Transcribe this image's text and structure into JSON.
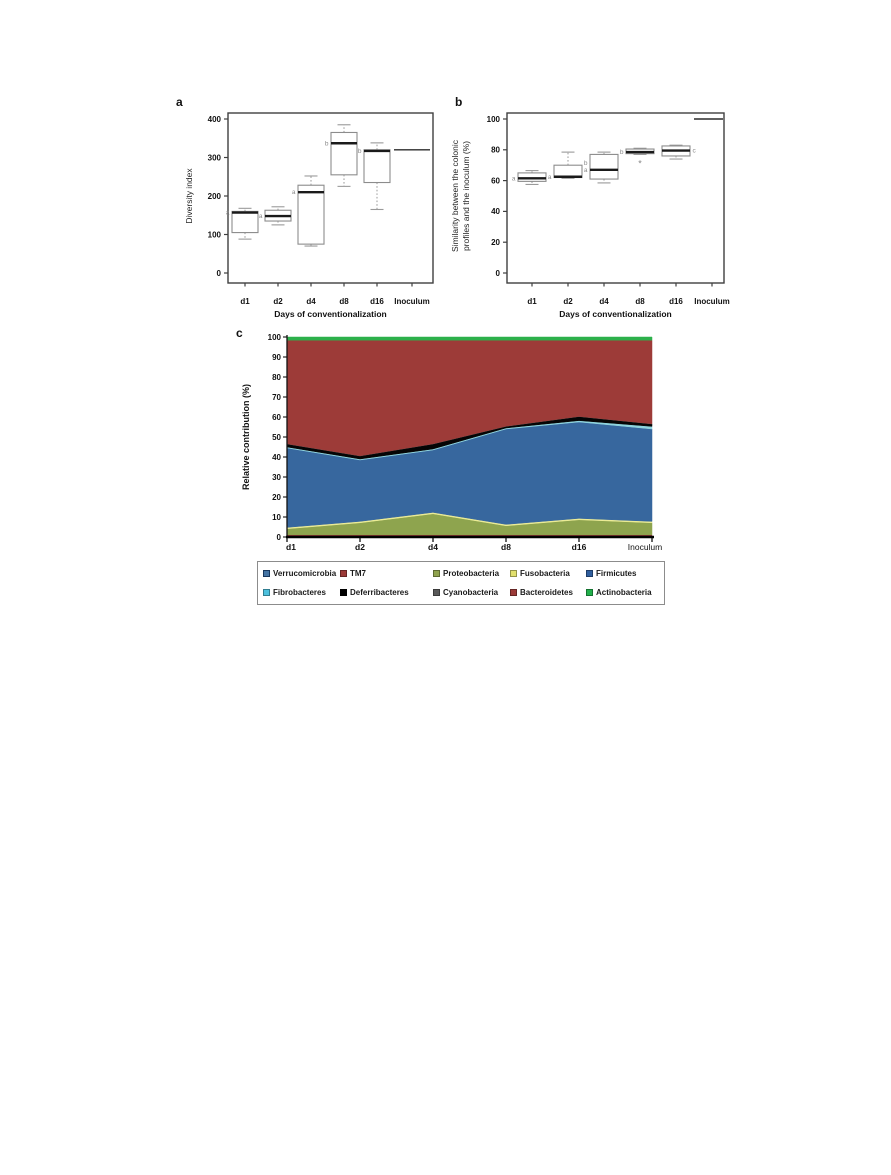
{
  "panels": {
    "a": {
      "label": "a"
    },
    "b": {
      "label": "b"
    },
    "c": {
      "label": "c"
    }
  },
  "chart_data": [
    {
      "panel": "a",
      "type": "box",
      "xlabel": "Days of conventionalization",
      "ylabel": "Diversity index",
      "ylim": [
        0,
        400
      ],
      "yticks": [
        0,
        100,
        200,
        300,
        400
      ],
      "categories": [
        "d1",
        "d2",
        "d4",
        "d8",
        "d16",
        "Inoculum"
      ],
      "boxes": [
        {
          "category": "d1",
          "whisker_low": 88,
          "q1": 105,
          "median": 157,
          "q3": 160,
          "whisker_high": 168,
          "sig_labels": [
            "a"
          ]
        },
        {
          "category": "d2",
          "whisker_low": 125,
          "q1": 135,
          "median": 148,
          "q3": 163,
          "whisker_high": 172,
          "sig_labels": [
            "a"
          ]
        },
        {
          "category": "d4",
          "whisker_low": 70,
          "q1": 75,
          "median": 210,
          "q3": 228,
          "whisker_high": 252,
          "sig_labels": [
            "a"
          ]
        },
        {
          "category": "d8",
          "whisker_low": 225,
          "q1": 255,
          "median": 337,
          "q3": 365,
          "whisker_high": 385,
          "sig_labels": [
            "b"
          ]
        },
        {
          "category": "d16",
          "whisker_low": 165,
          "q1": 235,
          "median": 317,
          "q3": 320,
          "whisker_high": 338,
          "sig_labels": [
            "b"
          ]
        },
        {
          "category": "Inoculum",
          "value_line": 320
        }
      ]
    },
    {
      "panel": "b",
      "type": "box",
      "xlabel": "Days of conventionalization",
      "ylabel_lines": [
        "Similarity between the colonic",
        "profiles and the inoculum (%)"
      ],
      "ylim": [
        0,
        100
      ],
      "yticks": [
        0,
        20,
        40,
        60,
        80,
        100
      ],
      "categories": [
        "d1",
        "d2",
        "d4",
        "d8",
        "d16",
        "Inoculum"
      ],
      "boxes": [
        {
          "category": "d1",
          "whisker_low": 57.5,
          "q1": 59.5,
          "median": 61.5,
          "q3": 65,
          "whisker_high": 66.5,
          "sig_labels": [
            "a"
          ]
        },
        {
          "category": "d2",
          "whisker_low": 61.5,
          "q1": 62,
          "median": 62.5,
          "q3": 70,
          "whisker_high": 78.5,
          "sig_labels": [
            "a"
          ]
        },
        {
          "category": "d4",
          "whisker_low": 58.5,
          "q1": 61,
          "median": 67,
          "q3": 77,
          "whisker_high": 78.5,
          "sig_labels": [
            "b",
            "a"
          ]
        },
        {
          "category": "d8",
          "whisker_low": 77,
          "q1": 77.5,
          "median": 78.5,
          "q3": 80.5,
          "whisker_high": 81,
          "sig_labels": [
            "b"
          ],
          "outliers": [
            71
          ]
        },
        {
          "category": "d16",
          "whisker_low": 74,
          "q1": 76,
          "median": 79.5,
          "q3": 82.5,
          "whisker_high": 83,
          "sig_labels": [
            "c"
          ],
          "sig_side": "right"
        },
        {
          "category": "Inoculum",
          "value_line": 100
        }
      ]
    },
    {
      "panel": "c",
      "type": "stacked_area",
      "ylabel": "Relative contribution (%)",
      "ylim": [
        0,
        100
      ],
      "ytick_step": 10,
      "categories": [
        "d1",
        "d2",
        "d4",
        "d8",
        "d16",
        "Inoculum"
      ],
      "series": [
        {
          "name": "Verrucomicrobia",
          "color": "#46719c",
          "values": [
            0.3,
            0.3,
            0.3,
            0.3,
            0.3,
            0.3
          ]
        },
        {
          "name": "TM7",
          "color": "#8c3431",
          "values": [
            0.8,
            0.8,
            0.8,
            0.8,
            0.8,
            0.8
          ]
        },
        {
          "name": "Proteobacteria",
          "color": "#8ea44e",
          "values": [
            3,
            6,
            10.5,
            4.5,
            7.5,
            6
          ]
        },
        {
          "name": "Fusobacteria",
          "color": "#ecec96",
          "values": [
            0.7,
            0.7,
            0.7,
            0.7,
            0.7,
            0.7
          ]
        },
        {
          "name": "Firmicutes",
          "color": "#37679e",
          "values": [
            39.7,
            30.7,
            31.2,
            47.7,
            48.2,
            46.2
          ]
        },
        {
          "name": "Fibrobacteres",
          "color": "#8fd4de",
          "values": [
            0.5,
            0.5,
            0.5,
            0.5,
            0.7,
            1.3
          ]
        },
        {
          "name": "Deferribacteres",
          "color": "#050505",
          "values": [
            1.5,
            1.5,
            2.5,
            0.8,
            2.0,
            1.2
          ]
        },
        {
          "name": "Cyanobacteria",
          "color": "#595959",
          "values": [
            0.1,
            0.1,
            0.1,
            0.1,
            0.1,
            0.1
          ]
        },
        {
          "name": "Bacteroidetes",
          "color": "#9d3b38",
          "values": [
            51.8,
            57.8,
            51.8,
            43.0,
            38.1,
            41.8
          ]
        },
        {
          "name": "Actinobacteria",
          "color": "#2db04b",
          "values": [
            1.6,
            1.6,
            1.6,
            1.6,
            1.6,
            1.6
          ]
        }
      ]
    }
  ],
  "legend": {
    "items": [
      {
        "label": "Verrucomicrobia",
        "color": "#4474a4",
        "border": "#17375e"
      },
      {
        "label": "TM7",
        "color": "#9c3a38"
      },
      {
        "label": "Proteobacteria",
        "color": "#8fa24d"
      },
      {
        "label": "Fusobacteria",
        "color": "#e2e06d"
      },
      {
        "label": "Firmicutes",
        "color": "#2f5e9e"
      },
      {
        "label": "Fibrobacteres",
        "color": "#4cc0dd"
      },
      {
        "label": "Deferribacteres",
        "color": "#000000"
      },
      {
        "label": "Cyanobacteria",
        "color": "#595959"
      },
      {
        "label": "Bacteroidetes",
        "color": "#9c3a38"
      },
      {
        "label": "Actinobacteria",
        "color": "#21b04b"
      }
    ]
  }
}
